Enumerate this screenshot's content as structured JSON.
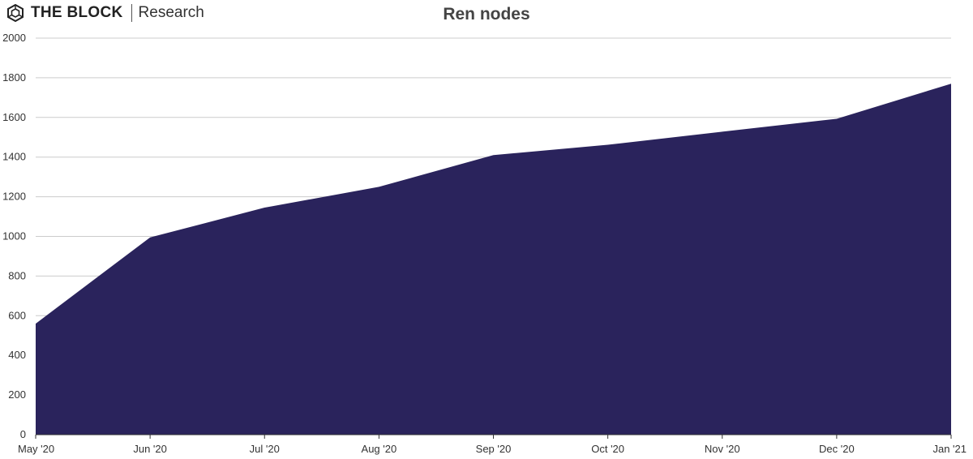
{
  "brand": {
    "name": "THE BLOCK",
    "sub": "Research"
  },
  "colors": {
    "area": "#2a235c",
    "grid": "#cccccc",
    "axis": "#333333"
  },
  "chart_data": {
    "type": "area",
    "title": "Ren nodes",
    "xlabel": "",
    "ylabel": "",
    "categories": [
      "May '20",
      "Jun '20",
      "Jul '20",
      "Aug '20",
      "Sep '20",
      "Oct '20",
      "Nov '20",
      "Dec '20",
      "Jan '21"
    ],
    "series": [
      {
        "values": [
          560,
          995,
          1145,
          1250,
          1410,
          1462,
          1528,
          1593,
          1770
        ]
      }
    ],
    "ylim": [
      0,
      2000
    ],
    "yticks": [
      0,
      200,
      400,
      600,
      800,
      1000,
      1200,
      1400,
      1600,
      1800,
      2000
    ],
    "grid": true,
    "legend": "none"
  }
}
